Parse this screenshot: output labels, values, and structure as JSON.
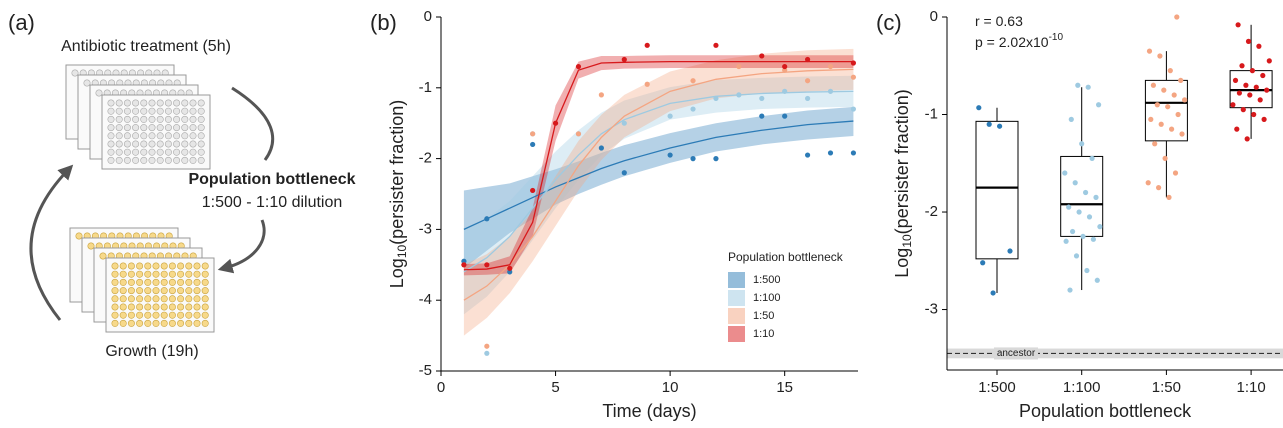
{
  "panel_labels": [
    "(a)",
    "(b)",
    "(c)"
  ],
  "diagram": {
    "top_label": "Antibiotic treatment (5h)",
    "middle_title": "Population bottleneck",
    "middle_subtitle": "1:500 - 1:10 dilution",
    "bottom_label": "Growth (19h)"
  },
  "chart_data": [
    {
      "type": "scatter",
      "xlabel": "Time (days)",
      "ylabel": {
        "text": "Log",
        "subscript": "10",
        "rest": "(persister fraction)"
      },
      "xlim": [
        0,
        18.2
      ],
      "ylim": [
        -5,
        0
      ],
      "xticks": [
        0,
        5,
        10,
        15
      ],
      "yticks": [
        0,
        -1,
        -2,
        -3,
        -4,
        -5
      ],
      "legend_title": "Population bottleneck",
      "legend_position": "lower right",
      "series": [
        {
          "name": "1:500",
          "color": "#2c7bb6",
          "x": [
            1,
            2,
            3,
            4,
            7,
            8,
            10,
            11,
            12,
            14,
            15,
            16,
            17,
            18
          ],
          "values": [
            -3.45,
            -2.85,
            -3.6,
            -1.8,
            -1.85,
            -2.2,
            -1.95,
            -2.0,
            -2.0,
            -1.4,
            -1.4,
            -1.95,
            -1.92,
            -1.92
          ],
          "fit": {
            "x": [
              1,
              2,
              3,
              4,
              5,
              6,
              7,
              8,
              10,
              12,
              14,
              16,
              18
            ],
            "values": [
              -3.0,
              -2.85,
              -2.7,
              -2.55,
              -2.4,
              -2.27,
              -2.14,
              -2.03,
              -1.85,
              -1.7,
              -1.6,
              -1.52,
              -1.47
            ],
            "lower": [
              -3.55,
              -3.3,
              -3.05,
              -2.85,
              -2.65,
              -2.5,
              -2.37,
              -2.25,
              -2.06,
              -1.9,
              -1.8,
              -1.73,
              -1.68
            ],
            "upper": [
              -2.45,
              -2.4,
              -2.35,
              -2.25,
              -2.15,
              -2.04,
              -1.92,
              -1.81,
              -1.64,
              -1.5,
              -1.4,
              -1.32,
              -1.27
            ]
          }
        },
        {
          "name": "1:100",
          "color": "#9ecae1",
          "x": [
            1,
            2,
            4,
            6,
            8,
            10,
            11,
            12,
            13,
            14,
            15,
            16,
            17,
            18
          ],
          "values": [
            -3.5,
            -4.75,
            -1.65,
            -1.65,
            -1.5,
            -1.4,
            -1.3,
            -1.15,
            -1.1,
            -1.15,
            -1.05,
            -1.15,
            -1.05,
            -1.3
          ],
          "fit": {
            "x": [
              1,
              2,
              3,
              4,
              5,
              6,
              7,
              8,
              10,
              12,
              14,
              16,
              18
            ],
            "values": [
              -3.6,
              -3.4,
              -3.1,
              -2.7,
              -2.3,
              -1.95,
              -1.65,
              -1.45,
              -1.22,
              -1.12,
              -1.08,
              -1.06,
              -1.05
            ],
            "lower": [
              -4.2,
              -3.95,
              -3.6,
              -3.15,
              -2.7,
              -2.3,
              -1.95,
              -1.72,
              -1.45,
              -1.35,
              -1.3,
              -1.28,
              -1.27
            ],
            "upper": [
              -3.0,
              -2.85,
              -2.6,
              -2.25,
              -1.9,
              -1.6,
              -1.35,
              -1.18,
              -0.99,
              -0.89,
              -0.86,
              -0.84,
              -0.83
            ]
          }
        },
        {
          "name": "1:50",
          "color": "#f4a582",
          "x": [
            1,
            2,
            4,
            6,
            7,
            9,
            11,
            13,
            15,
            16,
            17,
            18
          ],
          "values": [
            -3.5,
            -4.65,
            -1.65,
            -1.65,
            -1.1,
            -0.95,
            -0.9,
            -0.7,
            -0.75,
            -0.9,
            -0.7,
            -0.85
          ],
          "fit": {
            "x": [
              1,
              2,
              3,
              4,
              5,
              6,
              7,
              8,
              10,
              12,
              14,
              16,
              18
            ],
            "values": [
              -4.0,
              -3.8,
              -3.5,
              -3.1,
              -2.6,
              -2.1,
              -1.7,
              -1.4,
              -1.05,
              -0.88,
              -0.8,
              -0.76,
              -0.74
            ],
            "lower": [
              -4.5,
              -4.25,
              -3.9,
              -3.45,
              -2.95,
              -2.45,
              -2.02,
              -1.7,
              -1.33,
              -1.15,
              -1.08,
              -1.05,
              -1.03
            ],
            "upper": [
              -3.5,
              -3.35,
              -3.1,
              -2.75,
              -2.25,
              -1.75,
              -1.38,
              -1.1,
              -0.77,
              -0.61,
              -0.52,
              -0.47,
              -0.45
            ]
          }
        },
        {
          "name": "1:10",
          "color": "#d7191c",
          "x": [
            1,
            2,
            3,
            4,
            5,
            6,
            8,
            9,
            12,
            14,
            15,
            16,
            18
          ],
          "values": [
            -3.5,
            -3.5,
            -3.55,
            -2.45,
            -1.5,
            -0.7,
            -0.6,
            -0.4,
            -0.4,
            -0.55,
            -0.7,
            -0.6,
            -0.65
          ],
          "fit": {
            "x": [
              1,
              2,
              3,
              4,
              5,
              6,
              7,
              8,
              10,
              12,
              14,
              16,
              18
            ],
            "values": [
              -3.57,
              -3.56,
              -3.5,
              -2.9,
              -1.5,
              -0.75,
              -0.65,
              -0.64,
              -0.63,
              -0.63,
              -0.63,
              -0.63,
              -0.63
            ],
            "lower": [
              -3.65,
              -3.64,
              -3.62,
              -3.1,
              -1.75,
              -0.87,
              -0.75,
              -0.73,
              -0.72,
              -0.72,
              -0.72,
              -0.72,
              -0.72
            ],
            "upper": [
              -3.49,
              -3.48,
              -3.38,
              -2.7,
              -1.25,
              -0.63,
              -0.55,
              -0.55,
              -0.54,
              -0.54,
              -0.54,
              -0.54,
              -0.54
            ]
          }
        }
      ]
    },
    {
      "type": "box",
      "xlabel": "Population bottleneck",
      "ylabel": {
        "text": "Log",
        "subscript": "10",
        "rest": "(persister fraction)"
      },
      "categories": [
        "1:500",
        "1:100",
        "1:50",
        "1:10"
      ],
      "ylim": [
        -3.62,
        0
      ],
      "yticks": [
        0,
        -1,
        -2,
        -3
      ],
      "annotations": [
        {
          "text": "r = 0.63"
        },
        {
          "text": "p = 2.02x10",
          "superscript": "-10"
        }
      ],
      "reference_line": {
        "label": "ancestor",
        "value": -3.45,
        "lower": -3.5,
        "upper": -3.4
      },
      "boxes": [
        {
          "color": "#2c7bb6",
          "whisker_low": -2.83,
          "q1": -2.48,
          "median": -1.75,
          "q3": -1.07,
          "whisker_high": -0.93,
          "points": [
            -0.93,
            -1.1,
            -1.12,
            -2.4,
            -2.52,
            -2.83
          ]
        },
        {
          "color": "#9ecae1",
          "whisker_low": -2.8,
          "q1": -2.25,
          "median": -1.92,
          "q3": -1.43,
          "whisker_high": -0.72,
          "points": [
            -0.7,
            -0.72,
            -0.9,
            -1.05,
            -1.3,
            -1.45,
            -1.6,
            -1.7,
            -1.8,
            -1.85,
            -1.95,
            -2.0,
            -2.05,
            -2.15,
            -2.2,
            -2.25,
            -2.28,
            -2.3,
            -2.45,
            -2.6,
            -2.7,
            -2.8
          ]
        },
        {
          "color": "#f4a582",
          "whisker_low": -1.85,
          "q1": -1.27,
          "median": -0.88,
          "q3": -0.65,
          "whisker_high": -0.35,
          "points": [
            0,
            -0.35,
            -0.4,
            -0.55,
            -0.65,
            -0.7,
            -0.75,
            -0.8,
            -0.85,
            -0.9,
            -0.92,
            -1.0,
            -1.05,
            -1.1,
            -1.15,
            -1.2,
            -1.3,
            -1.45,
            -1.6,
            -1.7,
            -1.75,
            -1.85
          ]
        },
        {
          "color": "#d7191c",
          "whisker_low": -1.25,
          "q1": -0.93,
          "median": -0.75,
          "q3": -0.55,
          "whisker_high": -0.08,
          "points": [
            -0.08,
            -0.25,
            -0.3,
            -0.45,
            -0.5,
            -0.55,
            -0.6,
            -0.65,
            -0.7,
            -0.72,
            -0.75,
            -0.78,
            -0.8,
            -0.85,
            -0.9,
            -0.95,
            -1.0,
            -1.05,
            -1.15,
            -1.25
          ]
        }
      ]
    }
  ]
}
